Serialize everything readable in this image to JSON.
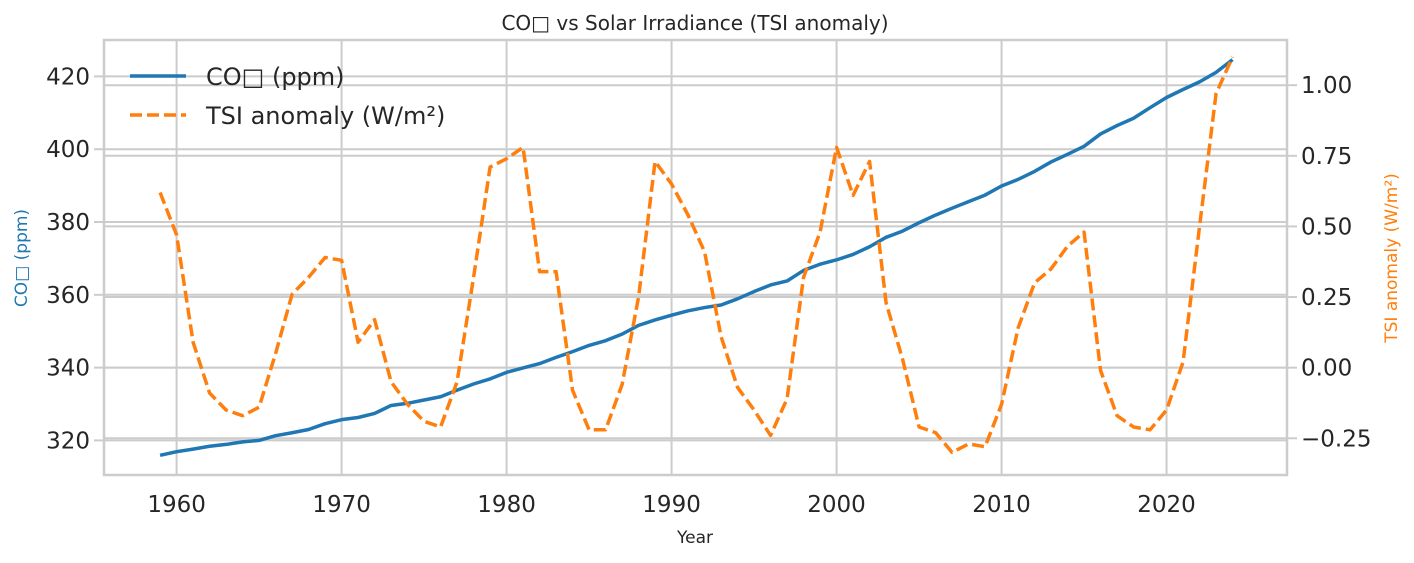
{
  "chart_data": {
    "type": "line",
    "title": "CO□ vs Solar Irradiance (TSI anomaly)",
    "xlabel": "Year",
    "ylabel_left": "CO□ (ppm)",
    "ylabel_right": "TSI anomaly (W/m²)",
    "xlim": [
      1955.6,
      2027.3
    ],
    "ylim_left": [
      310.5,
      430.0
    ],
    "ylim_right": [
      -0.38,
      1.16
    ],
    "xticks": [
      1960,
      1970,
      1980,
      1990,
      2000,
      2010,
      2020
    ],
    "yticks_left": [
      320,
      340,
      360,
      380,
      400,
      420
    ],
    "yticks_right": [
      -0.25,
      0.0,
      0.25,
      0.5,
      0.75,
      1.0
    ],
    "ytick_labels_right": [
      "−0.25",
      "0.00",
      "0.25",
      "0.50",
      "0.75",
      "1.00"
    ],
    "grid": true,
    "legend_position": "upper-left",
    "series": [
      {
        "name": "CO□ (ppm)",
        "axis": "left",
        "color": "#1f77b4",
        "style": "solid",
        "x": [
          1959,
          1960,
          1961,
          1962,
          1963,
          1964,
          1965,
          1966,
          1967,
          1968,
          1969,
          1970,
          1971,
          1972,
          1973,
          1974,
          1975,
          1976,
          1977,
          1978,
          1979,
          1980,
          1981,
          1982,
          1983,
          1984,
          1985,
          1986,
          1987,
          1988,
          1989,
          1990,
          1991,
          1992,
          1993,
          1994,
          1995,
          1996,
          1997,
          1998,
          1999,
          2000,
          2001,
          2002,
          2003,
          2004,
          2005,
          2006,
          2007,
          2008,
          2009,
          2010,
          2011,
          2012,
          2013,
          2014,
          2015,
          2016,
          2017,
          2018,
          2019,
          2020,
          2021,
          2022,
          2023,
          2024
        ],
        "values": [
          315.9,
          316.9,
          317.6,
          318.4,
          318.9,
          319.6,
          320.0,
          321.3,
          322.1,
          323.0,
          324.6,
          325.7,
          326.3,
          327.4,
          329.6,
          330.2,
          331.1,
          332.0,
          333.8,
          335.5,
          336.9,
          338.7,
          339.9,
          341.1,
          342.8,
          344.4,
          346.1,
          347.4,
          349.2,
          351.6,
          353.1,
          354.4,
          355.6,
          356.5,
          357.2,
          358.9,
          360.9,
          362.7,
          363.8,
          366.7,
          368.4,
          369.6,
          371.1,
          373.2,
          375.8,
          377.5,
          379.8,
          381.9,
          383.8,
          385.6,
          387.4,
          389.9,
          391.7,
          393.9,
          396.5,
          398.6,
          400.8,
          404.2,
          406.5,
          408.5,
          411.4,
          414.2,
          416.4,
          418.5,
          421.1,
          424.6
        ]
      },
      {
        "name": "TSI anomaly (W/m²)",
        "axis": "right",
        "color": "#ff7f0e",
        "style": "dashed",
        "x": [
          1959,
          1960,
          1961,
          1962,
          1963,
          1964,
          1965,
          1966,
          1967,
          1968,
          1969,
          1970,
          1971,
          1972,
          1973,
          1974,
          1975,
          1976,
          1977,
          1978,
          1979,
          1980,
          1981,
          1982,
          1983,
          1984,
          1985,
          1986,
          1987,
          1988,
          1989,
          1990,
          1991,
          1992,
          1993,
          1994,
          1995,
          1996,
          1997,
          1998,
          1999,
          2000,
          2001,
          2002,
          2003,
          2004,
          2005,
          2006,
          2007,
          2008,
          2009,
          2010,
          2011,
          2012,
          2013,
          2014,
          2015,
          2016,
          2017,
          2018,
          2019,
          2020,
          2021,
          2022,
          2023,
          2024
        ],
        "values": [
          0.62,
          0.47,
          0.09,
          -0.09,
          -0.15,
          -0.17,
          -0.14,
          0.05,
          0.26,
          0.32,
          0.39,
          0.38,
          0.09,
          0.17,
          -0.05,
          -0.13,
          -0.19,
          -0.21,
          -0.05,
          0.32,
          0.71,
          0.74,
          0.78,
          0.34,
          0.34,
          -0.08,
          -0.22,
          -0.22,
          -0.06,
          0.25,
          0.73,
          0.65,
          0.54,
          0.41,
          0.11,
          -0.07,
          -0.15,
          -0.24,
          -0.11,
          0.32,
          0.48,
          0.78,
          0.61,
          0.73,
          0.23,
          0.03,
          -0.21,
          -0.23,
          -0.3,
          -0.27,
          -0.28,
          -0.13,
          0.14,
          0.3,
          0.35,
          0.43,
          0.48,
          -0.01,
          -0.17,
          -0.21,
          -0.22,
          -0.15,
          0.02,
          0.5,
          0.97,
          1.1
        ]
      }
    ]
  }
}
